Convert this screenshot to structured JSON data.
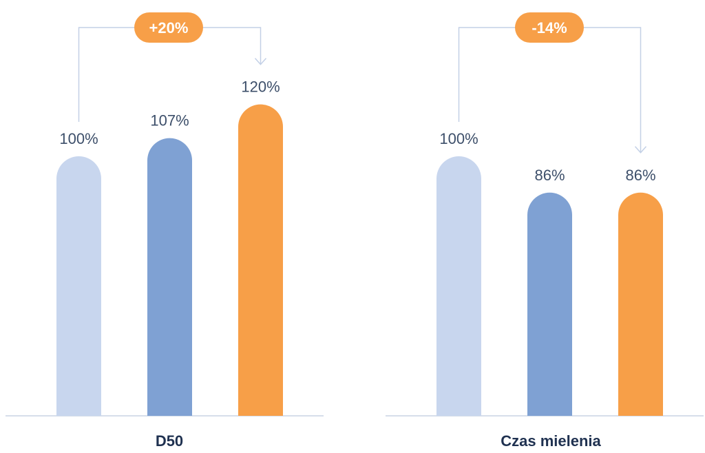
{
  "chart_data": [
    {
      "type": "bar",
      "categories": [
        "",
        "",
        ""
      ],
      "values": [
        100,
        107,
        120
      ],
      "value_labels": [
        "100%",
        "107%",
        "120%"
      ],
      "xlabel": "D50",
      "change_badge": "+20%",
      "colors": [
        "#c8d6ee",
        "#7fa1d3",
        "#f79f48"
      ]
    },
    {
      "type": "bar",
      "categories": [
        "",
        "",
        ""
      ],
      "values": [
        100,
        86,
        86
      ],
      "value_labels": [
        "100%",
        "86%",
        "86%"
      ],
      "xlabel": "Czas mielenia",
      "change_badge": "-14%",
      "colors": [
        "#c8d6ee",
        "#7fa1d3",
        "#f79f48"
      ]
    }
  ],
  "colors": {
    "bracket": "#c3d0e6",
    "axis": "#c8d3e3",
    "badge": "#f79f48"
  }
}
